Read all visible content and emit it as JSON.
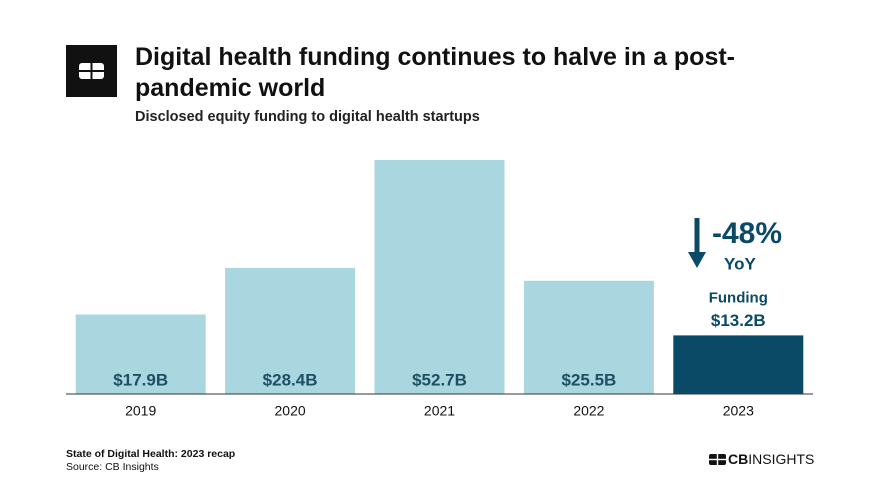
{
  "chart_data": {
    "type": "bar",
    "title": "Digital health funding continues to halve in a post-pandemic world",
    "subtitle": "Disclosed equity funding to digital health startups",
    "categories": [
      "2019",
      "2020",
      "2021",
      "2022",
      "2023"
    ],
    "values": [
      17.9,
      28.4,
      52.7,
      25.5,
      13.2
    ],
    "value_labels": [
      "$17.9B",
      "$28.4B",
      "$52.7B",
      "$25.5B",
      "$13.2B"
    ],
    "colors": [
      "#a9d6df",
      "#a9d6df",
      "#a9d6df",
      "#a9d6df",
      "#0b4a66"
    ],
    "annotations": {
      "change": "-48%",
      "period": "YoY",
      "highlight": "Funding"
    },
    "footnote": "State of Digital Health: 2023 recap",
    "source": "Source: CB Insights",
    "brand": [
      "CB",
      "INSIGHTS"
    ]
  }
}
